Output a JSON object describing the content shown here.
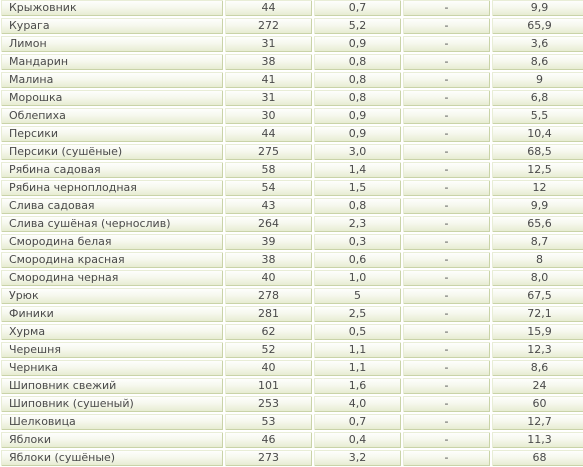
{
  "rows": [
    {
      "name": "Крыжовник",
      "kcal": "44",
      "protein": "0,7",
      "fat": "-",
      "carbs": "9,9"
    },
    {
      "name": "Курага",
      "kcal": "272",
      "protein": "5,2",
      "fat": "-",
      "carbs": "65,9"
    },
    {
      "name": "Лимон",
      "kcal": "31",
      "protein": "0,9",
      "fat": "-",
      "carbs": "3,6"
    },
    {
      "name": "Мандарин",
      "kcal": "38",
      "protein": "0,8",
      "fat": "-",
      "carbs": "8,6"
    },
    {
      "name": "Малина",
      "kcal": "41",
      "protein": "0,8",
      "fat": "-",
      "carbs": "9"
    },
    {
      "name": "Морошка",
      "kcal": "31",
      "protein": "0,8",
      "fat": "-",
      "carbs": "6,8"
    },
    {
      "name": "Облепиха",
      "kcal": "30",
      "protein": "0,9",
      "fat": "-",
      "carbs": "5,5"
    },
    {
      "name": "Персики",
      "kcal": "44",
      "protein": "0,9",
      "fat": "-",
      "carbs": "10,4"
    },
    {
      "name": "Персики (сушёные)",
      "kcal": "275",
      "protein": "3,0",
      "fat": "-",
      "carbs": "68,5"
    },
    {
      "name": "Рябина садовая",
      "kcal": "58",
      "protein": "1,4",
      "fat": "-",
      "carbs": "12,5"
    },
    {
      "name": "Рябина черноплодная",
      "kcal": "54",
      "protein": "1,5",
      "fat": "-",
      "carbs": "12"
    },
    {
      "name": "Слива садовая",
      "kcal": "43",
      "protein": "0,8",
      "fat": "-",
      "carbs": "9,9"
    },
    {
      "name": "Слива сушёная (чернослив)",
      "kcal": "264",
      "protein": "2,3",
      "fat": "-",
      "carbs": "65,6"
    },
    {
      "name": "Смородина белая",
      "kcal": "39",
      "protein": "0,3",
      "fat": "-",
      "carbs": "8,7"
    },
    {
      "name": "Смородина красная",
      "kcal": "38",
      "protein": "0,6",
      "fat": "-",
      "carbs": "8"
    },
    {
      "name": "Смородина черная",
      "kcal": "40",
      "protein": "1,0",
      "fat": "-",
      "carbs": "8,0"
    },
    {
      "name": "Урюк",
      "kcal": "278",
      "protein": "5",
      "fat": "-",
      "carbs": "67,5"
    },
    {
      "name": "Финики",
      "kcal": "281",
      "protein": "2,5",
      "fat": "-",
      "carbs": "72,1"
    },
    {
      "name": "Хурма",
      "kcal": "62",
      "protein": "0,5",
      "fat": "-",
      "carbs": "15,9"
    },
    {
      "name": "Черешня",
      "kcal": "52",
      "protein": "1,1",
      "fat": "-",
      "carbs": "12,3"
    },
    {
      "name": "Черника",
      "kcal": "40",
      "protein": "1,1",
      "fat": "-",
      "carbs": "8,6"
    },
    {
      "name": "Шиповник свежий",
      "kcal": "101",
      "protein": "1,6",
      "fat": "-",
      "carbs": "24"
    },
    {
      "name": "Шиповник (сушеный)",
      "kcal": "253",
      "protein": "4,0",
      "fat": "-",
      "carbs": "60"
    },
    {
      "name": "Шелковица",
      "kcal": "53",
      "protein": "0,7",
      "fat": "-",
      "carbs": "12,7"
    },
    {
      "name": "Яблоки",
      "kcal": "46",
      "protein": "0,4",
      "fat": "-",
      "carbs": "11,3"
    },
    {
      "name": "Яблоки (сушёные)",
      "kcal": "273",
      "protein": "3,2",
      "fat": "-",
      "carbs": "68"
    }
  ]
}
